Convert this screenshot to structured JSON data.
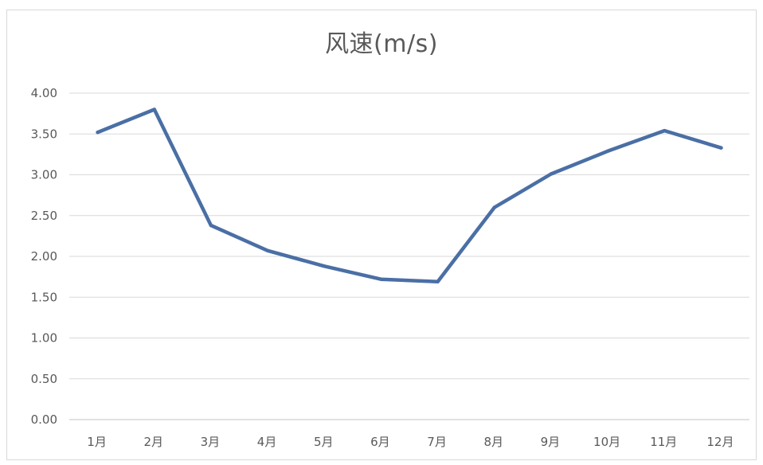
{
  "chart_data": {
    "type": "line",
    "title": "风速(m/s)",
    "xlabel": "",
    "ylabel": "",
    "categories": [
      "1月",
      "2月",
      "3月",
      "4月",
      "5月",
      "6月",
      "7月",
      "8月",
      "9月",
      "10月",
      "11月",
      "12月"
    ],
    "series": [
      {
        "values": [
          3.52,
          3.8,
          2.38,
          2.07,
          1.88,
          1.72,
          1.69,
          2.6,
          3.01,
          3.29,
          3.54,
          3.33
        ],
        "color": "#4a6fa5"
      }
    ],
    "ylim": [
      0,
      4
    ],
    "yticks": [
      "0.00",
      "0.50",
      "1.00",
      "1.50",
      "2.00",
      "2.50",
      "3.00",
      "3.50",
      "4.00"
    ],
    "grid": true,
    "legend": "none",
    "gridline_color": "#d9d9d9",
    "axis_label_color": "#595959"
  }
}
